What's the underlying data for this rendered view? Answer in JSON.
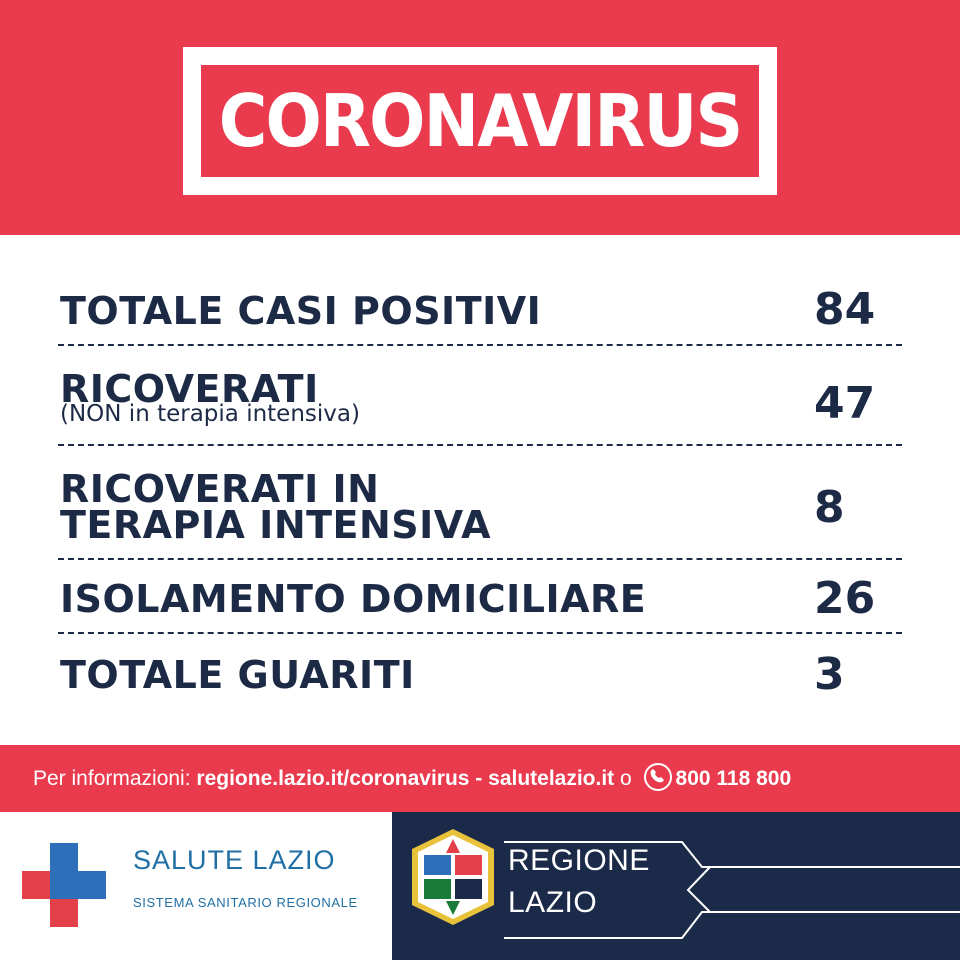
{
  "header": {
    "title": "CORONAVIRUS"
  },
  "stats": [
    {
      "label": "TOTALE CASI POSITIVI",
      "sublabel": "",
      "value": "84"
    },
    {
      "label": "RICOVERATI",
      "sublabel": "(NON in terapia intensiva)",
      "value": "47"
    },
    {
      "label_line1": "RICOVERATI IN",
      "label_line2": "TERAPIA INTENSIVA",
      "value": "8"
    },
    {
      "label": "ISOLAMENTO DOMICILIARE",
      "sublabel": "",
      "value": "26"
    },
    {
      "label": "TOTALE GUARITI",
      "sublabel": "",
      "value": "3"
    }
  ],
  "info": {
    "prefix": "Per informazioni: ",
    "link1": "regione.lazio.it/coronavirus",
    "separator": " - ",
    "link2": "salutelazio.it",
    "conjunction": " o ",
    "phone_icon": "phone-icon",
    "phone": "800 118 800"
  },
  "footer": {
    "left_title": "SALUTE LAZIO",
    "left_subtitle": "SISTEMA SANITARIO REGIONALE",
    "right_line1": "REGIONE",
    "right_line2": "LAZIO"
  },
  "colors": {
    "brand_red": "#ea3a4e",
    "navy": "#1c2a46",
    "footer_navy": "#1c2a4a",
    "salute_blue": "#1f6fa6",
    "cross_blue": "#2e6fba",
    "cross_red": "#e3404a"
  }
}
